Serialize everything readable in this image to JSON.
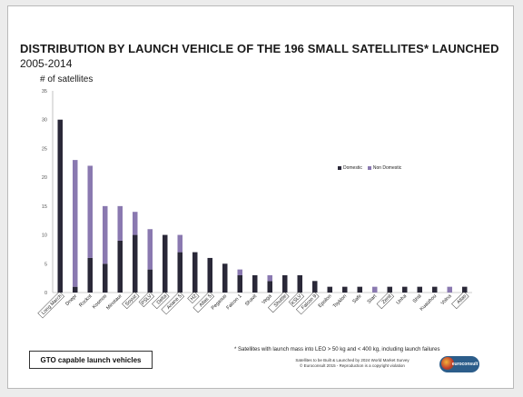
{
  "chart_data": {
    "type": "bar",
    "stacked": true,
    "title": "DISTRIBUTION BY LAUNCH VEHICLE OF THE 196 SMALL SATELLITES* LAUNCHED",
    "subtitle": "2005-2014",
    "ylabel": "# of satellites",
    "ylim": [
      0,
      35
    ],
    "yticks": [
      0,
      5,
      10,
      15,
      20,
      25,
      30,
      35
    ],
    "grid": false,
    "legend_position": "right",
    "categories": [
      "Long March",
      "Dnepr",
      "Rockot",
      "Kosmos",
      "Minotaur",
      "Soyuz",
      "PSLV",
      "Delta",
      "Ariane 5",
      "H2",
      "Atlas 5",
      "Pegasus",
      "Falcon 1",
      "Shavit",
      "Vega",
      "Shuttle",
      "KSLV",
      "Falcon 9",
      "Epsilon",
      "Tsyklon",
      "Safir",
      "Start",
      "Zenit",
      "Unha",
      "Shtil",
      "Kuaizhou",
      "Volna",
      "Atlas"
    ],
    "boxed_categories": [
      "Long March",
      "Soyuz",
      "PSLV",
      "Delta",
      "Ariane 5",
      "H2",
      "Atlas 5",
      "Shuttle",
      "KSLV",
      "Falcon 9",
      "Zenit",
      "Atlas"
    ],
    "series": [
      {
        "name": "Domestic",
        "color": "#2a2838",
        "values": [
          30,
          1,
          6,
          5,
          9,
          10,
          4,
          10,
          7,
          7,
          6,
          5,
          3,
          3,
          2,
          3,
          3,
          2,
          1,
          1,
          1,
          0,
          1,
          1,
          1,
          1,
          0,
          1
        ]
      },
      {
        "name": "Non Domestic",
        "color": "#8a79b0",
        "values": [
          0,
          22,
          16,
          10,
          6,
          4,
          7,
          0,
          3,
          0,
          0,
          0,
          1,
          0,
          1,
          0,
          0,
          0,
          0,
          0,
          0,
          1,
          0,
          0,
          0,
          0,
          1,
          0
        ]
      }
    ]
  },
  "legend": {
    "domestic_label": "Domestic",
    "non_domestic_label": "Non Domestic",
    "domestic_color": "#2a2838",
    "non_domestic_color": "#8a79b0"
  },
  "gto_label": "GTO capable launch vehicles",
  "footnote": "* Satellites with launch mass into LEO > 50 kg and < 400 kg, including launch failures",
  "source_line1": "Satellites to be Built & Launched by 2024 World Market Survey",
  "source_line2": "© Euroconsult 2015 - Reproduction is a copyright violation",
  "logo_text": "euroconsult"
}
